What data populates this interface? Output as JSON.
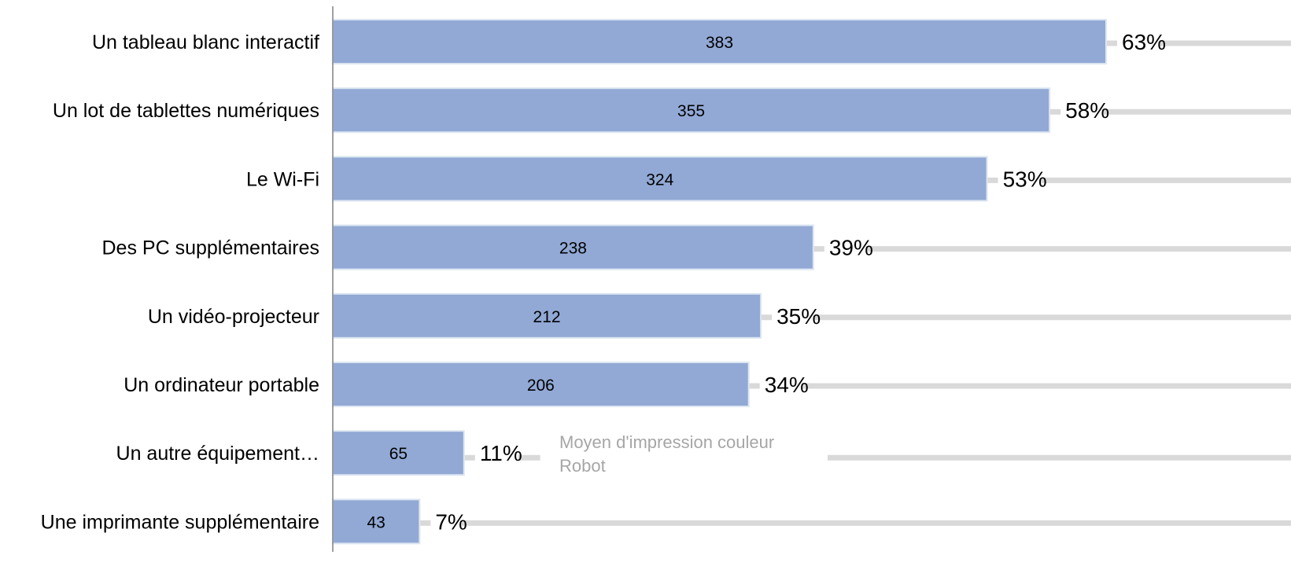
{
  "chart_data": {
    "type": "bar",
    "orientation": "horizontal",
    "categories": [
      "Un tableau blanc interactif",
      "Un lot de tablettes numériques",
      "Le Wi-Fi",
      "Des PC supplémentaires",
      "Un vidéo-projecteur",
      "Un ordinateur portable",
      "Un autre équipement…",
      "Une imprimante supplémentaire"
    ],
    "values": [
      383,
      355,
      324,
      238,
      212,
      206,
      65,
      43
    ],
    "percent_labels": [
      "63%",
      "58%",
      "53%",
      "39%",
      "35%",
      "34%",
      "11%",
      "7%"
    ],
    "annotation": {
      "category_index": 6,
      "lines": [
        "Moyen d'impression couleur",
        "Robot"
      ]
    },
    "xlim": [
      0,
      470
    ],
    "grid": false,
    "colors": {
      "bar": "#92a9d5",
      "bar_border": "#dce6f2",
      "guide_line": "#d9d9d9",
      "axis": "#808080",
      "annotation_text": "#a6a6a6"
    }
  }
}
